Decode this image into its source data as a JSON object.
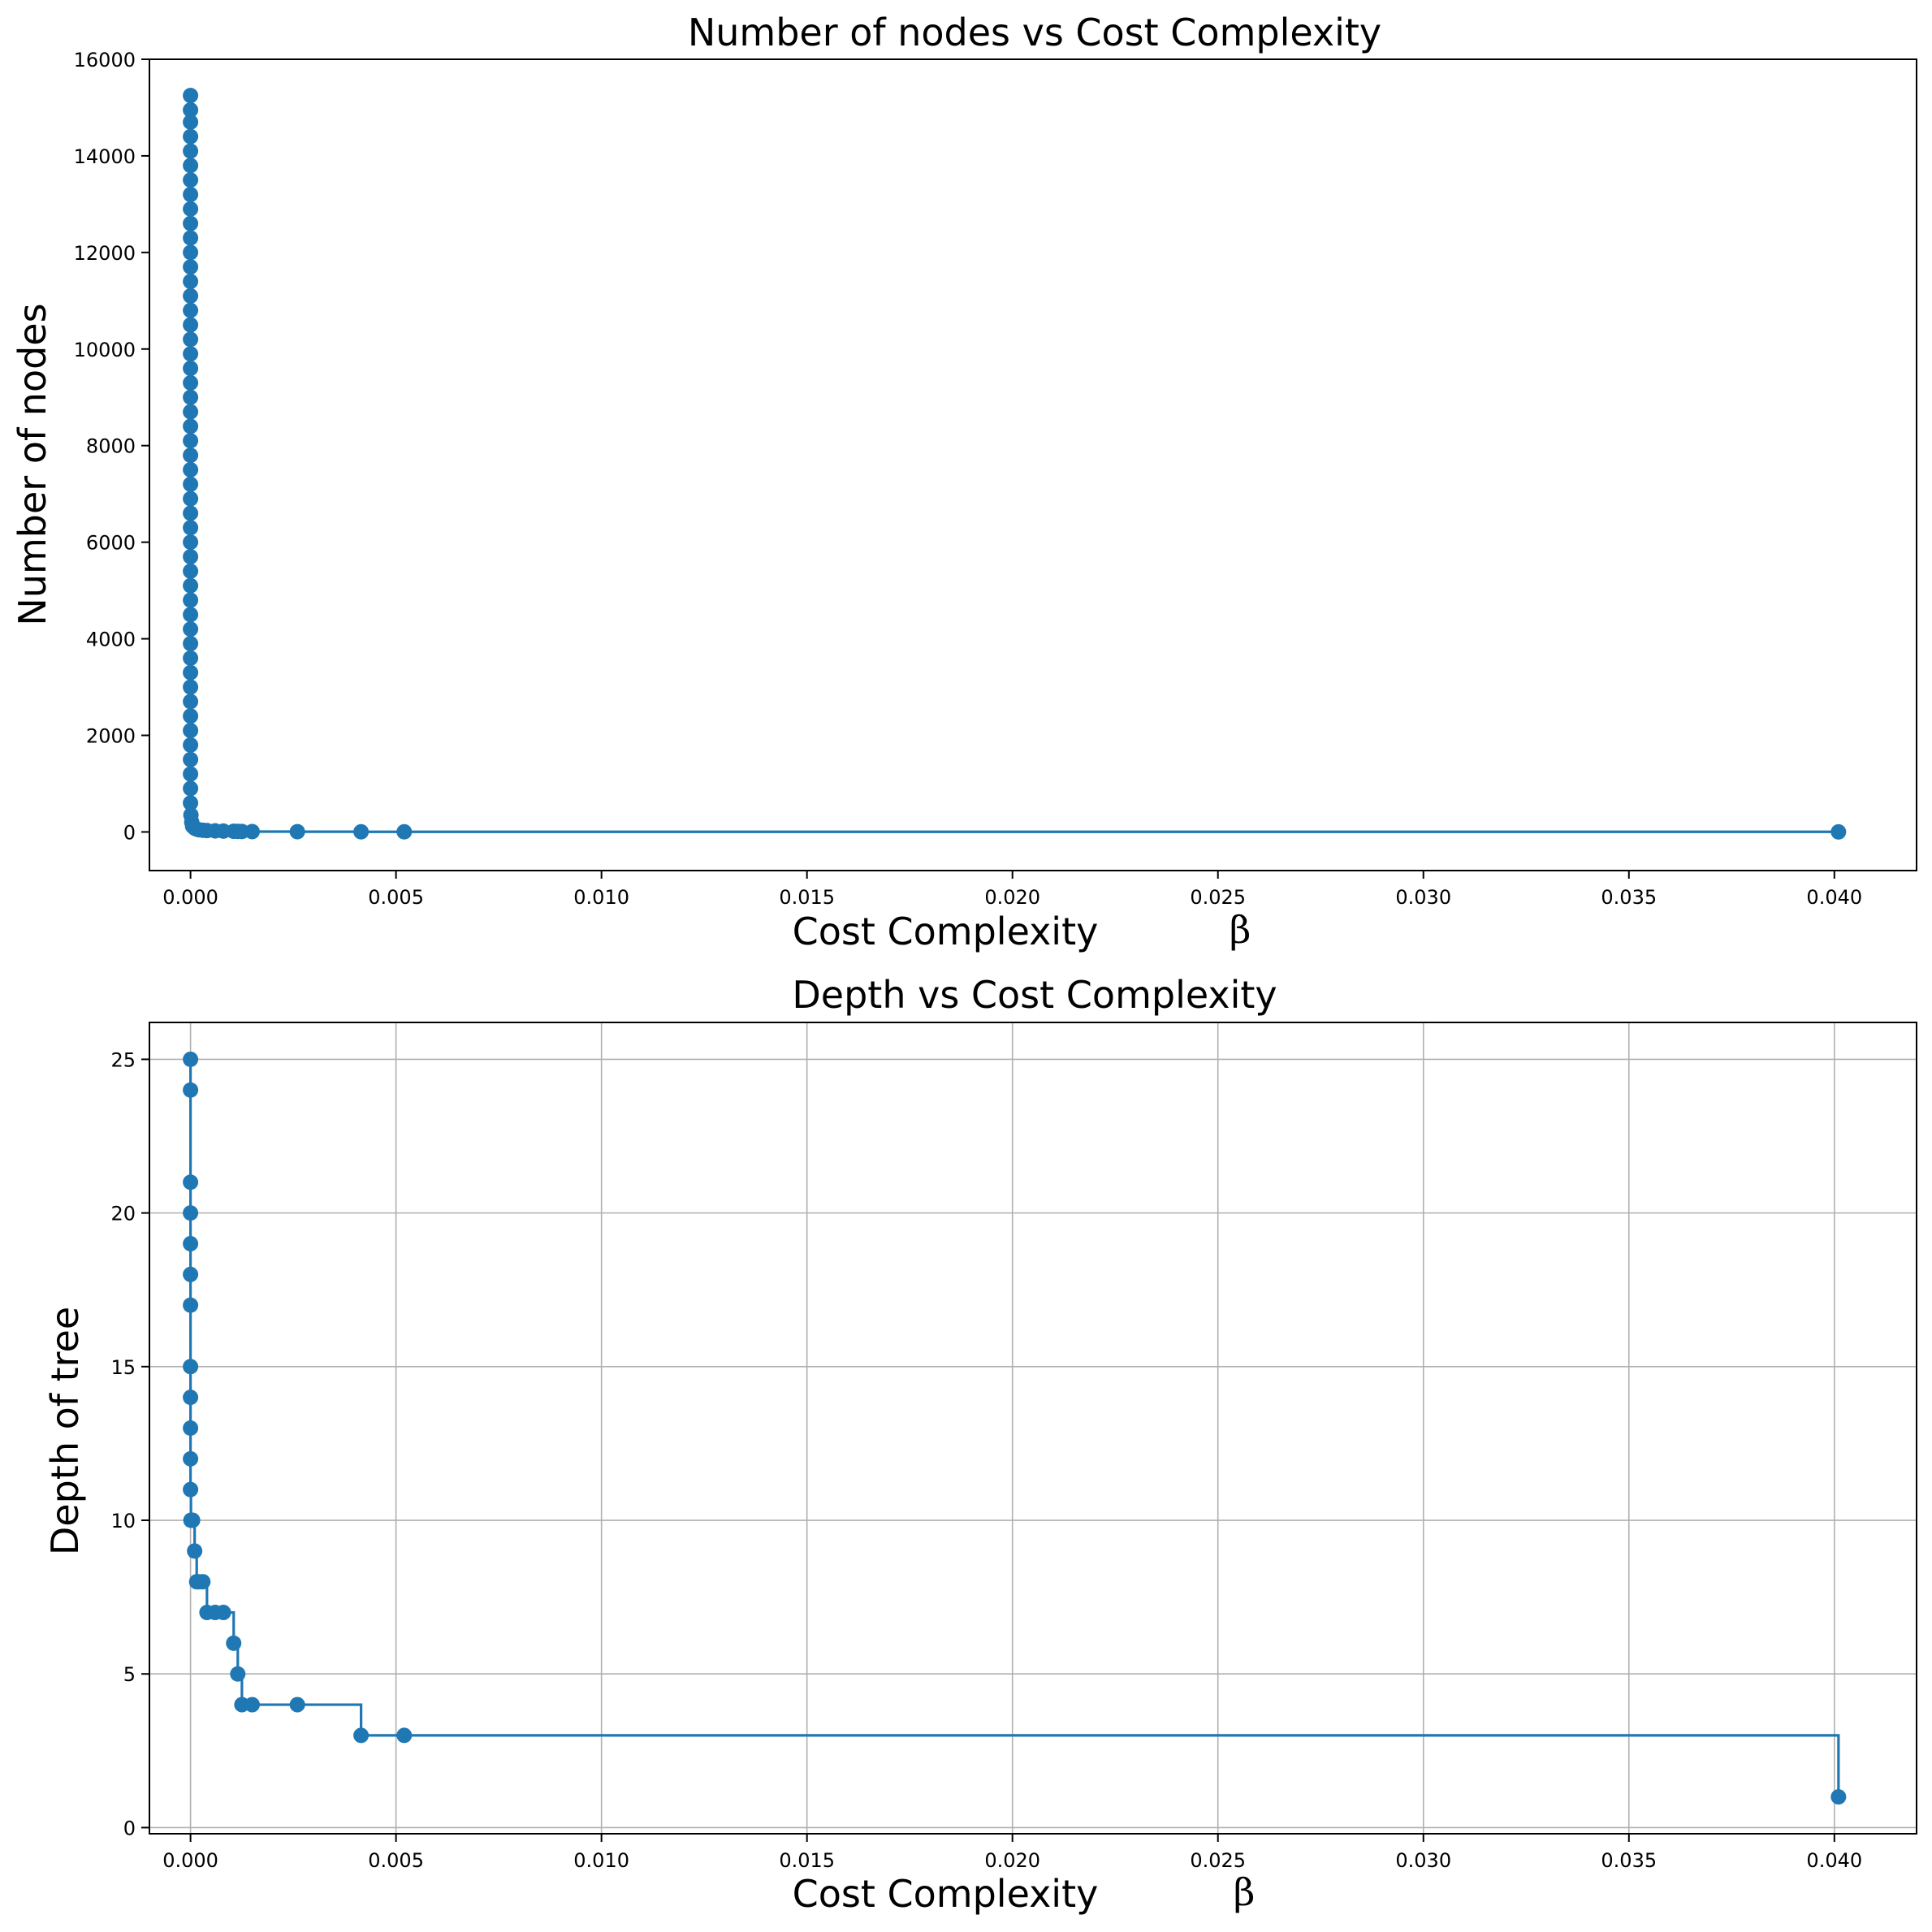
{
  "chart_data": [
    {
      "type": "line",
      "drawstyle": "steps-post",
      "marker": "circle",
      "title": "Number of nodes vs Cost Complexity",
      "xlabel": "Cost Complexity",
      "xlabel_symbol": "β",
      "ylabel": "Number of nodes",
      "xlim": [
        -0.001,
        0.042
      ],
      "ylim": [
        -800,
        16000
      ],
      "grid": false,
      "color": "#1f77b4",
      "xticks": [
        0.0,
        0.005,
        0.01,
        0.015,
        0.02,
        0.025,
        0.03,
        0.035,
        0.04
      ],
      "xtick_labels": [
        "0.000",
        "0.005",
        "0.010",
        "0.015",
        "0.020",
        "0.025",
        "0.030",
        "0.035",
        "0.040"
      ],
      "yticks": [
        0,
        2000,
        4000,
        6000,
        8000,
        10000,
        12000,
        14000,
        16000
      ],
      "ytick_labels": [
        "0",
        "2000",
        "4000",
        "6000",
        "8000",
        "10000",
        "12000",
        "14000",
        "16000"
      ],
      "x": [
        0.0,
        0.0,
        0.0,
        0.0,
        0.0,
        0.0,
        0.0,
        0.0,
        0.0,
        0.0,
        0.0,
        0.0,
        0.0,
        0.0,
        0.0,
        0.0,
        0.0,
        0.0,
        0.0,
        0.0,
        0.0,
        0.0,
        0.0,
        0.0,
        0.0,
        0.0,
        0.0,
        0.0,
        0.0,
        0.0,
        0.0,
        0.0,
        0.0,
        0.0,
        0.0,
        0.0,
        0.0,
        0.0,
        0.0,
        0.0,
        0.0,
        0.0,
        0.0,
        0.0,
        0.0,
        0.0,
        0.0,
        0.0,
        0.0,
        0.0,
        1e-05,
        3e-05,
        5e-05,
        0.0001,
        0.00015,
        0.0002,
        0.0003,
        0.0004,
        0.0006,
        0.0008,
        0.00105,
        0.00115,
        0.00125,
        0.0015,
        0.0026,
        0.00415,
        0.0052,
        0.0401
      ],
      "y": [
        15250,
        14950,
        14700,
        14400,
        14100,
        13800,
        13500,
        13200,
        12900,
        12600,
        12300,
        12000,
        11700,
        11400,
        11100,
        10800,
        10500,
        10200,
        9900,
        9600,
        9300,
        9000,
        8700,
        8400,
        8100,
        7800,
        7500,
        7200,
        6900,
        6600,
        6300,
        6000,
        5700,
        5400,
        5100,
        4800,
        4500,
        4200,
        3900,
        3600,
        3300,
        3000,
        2700,
        2400,
        2100,
        1800,
        1500,
        1200,
        900,
        600,
        350,
        200,
        120,
        80,
        60,
        45,
        35,
        28,
        22,
        18,
        14,
        11,
        9,
        7,
        5,
        3,
        3,
        1
      ]
    },
    {
      "type": "line",
      "drawstyle": "steps-post",
      "marker": "circle",
      "title": "Depth vs Cost Complexity",
      "xlabel": "Cost Complexity",
      "xlabel_symbol": "β",
      "ylabel": "Depth of tree",
      "xlim": [
        -0.001,
        0.042
      ],
      "ylim": [
        -0.2,
        26.2
      ],
      "grid": true,
      "color": "#1f77b4",
      "xticks": [
        0.0,
        0.005,
        0.01,
        0.015,
        0.02,
        0.025,
        0.03,
        0.035,
        0.04
      ],
      "xtick_labels": [
        "0.000",
        "0.005",
        "0.010",
        "0.015",
        "0.020",
        "0.025",
        "0.030",
        "0.035",
        "0.040"
      ],
      "yticks": [
        0,
        5,
        10,
        15,
        20,
        25
      ],
      "ytick_labels": [
        "0",
        "5",
        "10",
        "15",
        "20",
        "25"
      ],
      "x": [
        0.0,
        0.0,
        0.0,
        0.0,
        0.0,
        0.0,
        0.0,
        0.0,
        0.0,
        0.0,
        0.0,
        0.0,
        1e-05,
        3e-05,
        5e-05,
        0.0001,
        0.00015,
        0.0002,
        0.0003,
        0.0004,
        0.0006,
        0.0008,
        0.00105,
        0.00115,
        0.00125,
        0.0015,
        0.0026,
        0.00415,
        0.0052,
        0.0401
      ],
      "y": [
        25,
        24,
        21,
        20,
        19,
        18,
        17,
        15,
        14,
        13,
        12,
        11,
        10,
        10,
        10,
        9,
        8,
        8,
        8,
        7,
        7,
        7,
        6,
        5,
        4,
        4,
        4,
        3,
        3,
        1
      ]
    }
  ]
}
